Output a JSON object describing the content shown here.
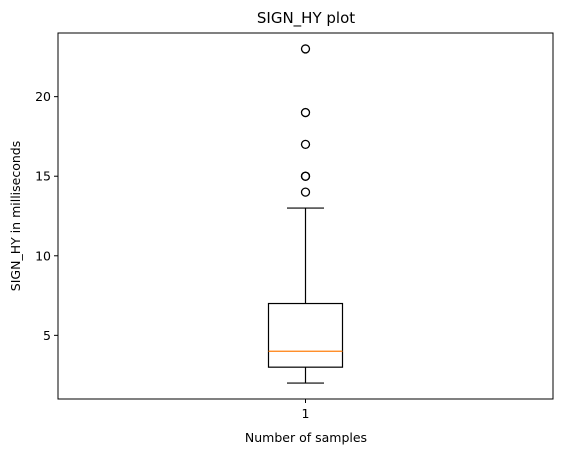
{
  "chart_data": {
    "type": "box",
    "title": "SIGN_HY plot",
    "xlabel": "Number of samples",
    "ylabel": "SIGN_HY in milliseconds",
    "categories": [
      "1"
    ],
    "ylim": [
      1,
      24
    ],
    "yticks": [
      5,
      10,
      15,
      20
    ],
    "grid": false,
    "boxes": [
      {
        "label": "1",
        "whisker_low": 2,
        "q1": 3,
        "median": 4,
        "q3": 7,
        "whisker_high": 13,
        "outliers": [
          14,
          15,
          15,
          17,
          19,
          23
        ]
      }
    ],
    "colors": {
      "box": "#000000",
      "median": "#ff7f0e",
      "outlier": "#000000"
    }
  }
}
